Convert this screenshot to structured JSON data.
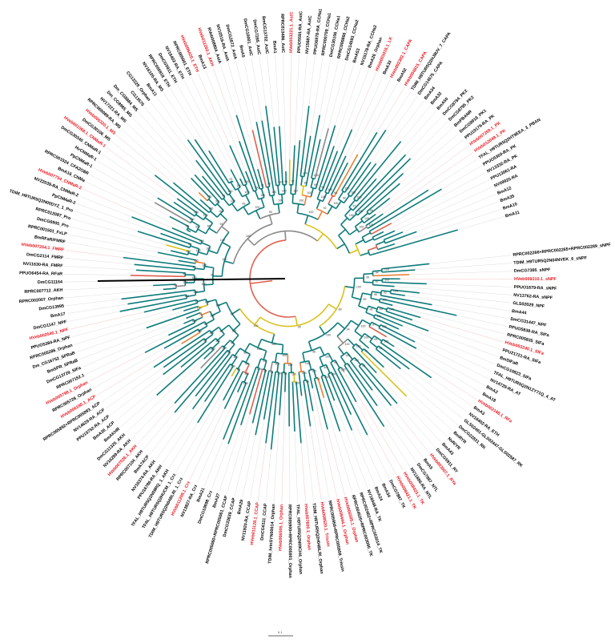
{
  "figure": {
    "type": "circular-phylogenetic-tree",
    "colors": {
      "branch_main": "#0e7b7b",
      "branch_grey": "#8a8a8a",
      "branch_orange": "#e8823a",
      "branch_yellow": "#d9c21e",
      "branch_red": "#e06050",
      "branch_black": "#000000",
      "leaf_guide": "#dddddd",
      "leaf_guide_highlight": "#f3c4c4",
      "label_default": "#000000",
      "label_highlight": "#e8141c"
    }
  },
  "leaves": [
    {
      "label": "RPRC002266+RPRC002265+RPRC002289_sNPF",
      "hl": false
    },
    {
      "label": "TDIM_H9TUR5Q2N04NVEK_6_sNPF",
      "hl": false
    },
    {
      "label": "DmCG7395_sNPF",
      "hl": false
    },
    {
      "label": "HVeb009310.1_sNPF",
      "hl": true
    },
    {
      "label": "PPUO1679-RA_sNPF",
      "hl": false
    },
    {
      "label": "NV13762-RA_sNPF",
      "hl": false
    },
    {
      "label": "GLS02029_NPF",
      "hl": false
    },
    {
      "label": "BmA44",
      "hl": false
    },
    {
      "label": "DmCG31447_NPF",
      "hl": false
    },
    {
      "label": "PPUO5838-RA_SIFa",
      "hl": false
    },
    {
      "label": "RPRC005835_SIFa",
      "hl": false
    },
    {
      "label": "HVeb003240.1_SIFa",
      "hl": true
    },
    {
      "label": "PPU21721-RA_SIFa",
      "hl": false
    },
    {
      "label": "BmSIFaR",
      "hl": false
    },
    {
      "label": "DmCG10823_SIFa",
      "hl": false
    },
    {
      "label": "TFAL_H9TUR5Q2N1ZY71Q_4_AT",
      "hl": false
    },
    {
      "label": "NV14729-RA_AT",
      "hl": false
    },
    {
      "label": "BmA2",
      "hl": false
    },
    {
      "label": "BmA18",
      "hl": false
    },
    {
      "label": "HVeb002168.1_RFa",
      "hl": true
    },
    {
      "label": "BmA3",
      "hl": false
    },
    {
      "label": "NV16402-RA_ETH",
      "hl": false
    },
    {
      "label": "GLS02491-GLS02447-GLS02587_RK",
      "hl": false
    },
    {
      "label": "DmCG22831_RK",
      "hl": false
    },
    {
      "label": "BmRYR",
      "hl": false
    },
    {
      "label": "NvR/YR",
      "hl": false
    },
    {
      "label": "BmA43",
      "hl": false
    },
    {
      "label": "DmCG5911_RY",
      "hl": false
    },
    {
      "label": "HVeb003507.1_RYa",
      "hl": true
    },
    {
      "label": "BmA5",
      "hl": false
    },
    {
      "label": "DmCG7887_NTL",
      "hl": false
    },
    {
      "label": "NV11886-RA_NTL",
      "hl": false
    },
    {
      "label": "HVeb008423.1_TK",
      "hl": true
    },
    {
      "label": "HVeb008421.1_TK",
      "hl": true
    },
    {
      "label": "DmCG7887_TK",
      "hl": false
    },
    {
      "label": "BmA34",
      "hl": false
    },
    {
      "label": "BmA24",
      "hl": false
    },
    {
      "label": "NV16048-RA_TK",
      "hl": false
    },
    {
      "label": "RPRC002462+RPRC003014_TK",
      "hl": false
    },
    {
      "label": "RPRC004520+RPRC003090_TK",
      "hl": false
    },
    {
      "label": "HVeb006505.1_Orphan",
      "hl": true
    },
    {
      "label": "HVeb008444.1_Orphan",
      "hl": true
    },
    {
      "label": "RPRC005958+RPRC005959_Trissin",
      "hl": false
    },
    {
      "label": "HVeb008520.1_Trissin",
      "hl": true
    },
    {
      "label": "TDIM_H9TUR5Q2H04BLRI_Orphan",
      "hl": false
    },
    {
      "label": "HVeb007600.1_Orphan",
      "hl": true
    },
    {
      "label": "TFAL_H9TUR5Q2N09CH4_Orphan",
      "hl": false
    },
    {
      "label": "RPRC005900+RPRC005901_Orphan",
      "hl": false
    },
    {
      "label": "HVeb006505.1_Orphan",
      "hl": true
    },
    {
      "label": "TDIM_hrinSYN00014_Orphan",
      "hl": false
    },
    {
      "label": "DmCG6111_CCAP",
      "hl": false
    },
    {
      "label": "HVeb011128.1_CCAP",
      "hl": true
    },
    {
      "label": "NV11920-RA_CCAP",
      "hl": false
    },
    {
      "label": "BmA29",
      "hl": false
    },
    {
      "label": "DmCG33639_CCAP",
      "hl": false
    },
    {
      "label": "RPRC005060+RPRC005061_CCAP",
      "hl": false
    },
    {
      "label": "BmA27",
      "hl": false
    },
    {
      "label": "DmCG10698_Crz",
      "hl": false
    },
    {
      "label": "BmA21",
      "hl": false
    },
    {
      "label": "NV13827-RA_Crz",
      "hl": false
    },
    {
      "label": "HVeb011208.1_Crz",
      "hl": true
    },
    {
      "label": "TDIM_H9TUR5Q2N04BLRI_1_Crz",
      "hl": false
    },
    {
      "label": "TFAL_H9TUR5Q2HUCM_1_Crz",
      "hl": false
    },
    {
      "label": "TFAL_H9TUR5Q2N09RQ_1_AKH",
      "hl": false
    },
    {
      "label": "PPU16786-RA_AKH",
      "hl": false
    },
    {
      "label": "NV16374-RA_AKH",
      "hl": false
    },
    {
      "label": "BmA7ACP",
      "hl": false
    },
    {
      "label": "RPRC007104_AKH",
      "hl": false
    },
    {
      "label": "HVeb007026.1_AKH",
      "hl": true
    },
    {
      "label": "NV16289-RA_AKH",
      "hl": false
    },
    {
      "label": "DmCG11325_AKH",
      "hl": false
    },
    {
      "label": "BmAKHR",
      "hl": false
    },
    {
      "label": "BmA36_ACP",
      "hl": false
    },
    {
      "label": "PPU15752-RA_ACP",
      "hl": false
    },
    {
      "label": "NV14629-RA_ACP",
      "hl": false
    },
    {
      "label": "RPRC005892+RPRC005893_ACP",
      "hl": false
    },
    {
      "label": "HVeb006180.1_ACP",
      "hl": true
    },
    {
      "label": "RPRC005728_Orphan",
      "hl": false
    },
    {
      "label": "HVeb005798.1_Orphan",
      "hl": true
    },
    {
      "label": "RPRC007152.1",
      "hl": false
    },
    {
      "label": "DmCG13729_SIFa",
      "hl": false
    },
    {
      "label": "BmSPR_SPRaB",
      "hl": false
    },
    {
      "label": "Dm_CG16752_SPRaB",
      "hl": false
    },
    {
      "label": "RPRC005286_Orphan",
      "hl": false
    },
    {
      "label": "PPUO5384-RA_NPF",
      "hl": false
    },
    {
      "label": "HVeb002540.1_NPF",
      "hl": true
    },
    {
      "label": "DmCG1147_NPF",
      "hl": false
    },
    {
      "label": "BmA17",
      "hl": false
    },
    {
      "label": "DmCG13995",
      "hl": false
    },
    {
      "label": "RPRC002007_Orphan",
      "hl": false
    },
    {
      "label": "RPRC007712_AKH",
      "hl": false
    },
    {
      "label": "DmCG11164",
      "hl": false
    },
    {
      "label": "PPUO6454-RA_RFaR",
      "hl": false
    },
    {
      "label": "NV11630-RA_FMRF",
      "hl": false
    },
    {
      "label": "DmCG2114_FMRF",
      "hl": false
    },
    {
      "label": "HVeb007254.1_FMRF",
      "hl": true
    },
    {
      "label": "BmRFaR/FMRF",
      "hl": false
    },
    {
      "label": "RPRC001501_FxLP",
      "hl": false
    },
    {
      "label": "DmCG6905_Pro",
      "hl": false
    },
    {
      "label": "RPRC012087_Pro",
      "hl": false
    },
    {
      "label": "TDIM_H9TUR5Q2N00DYZ_1_Pro",
      "hl": false
    },
    {
      "label": "PpCNMaR-2",
      "hl": false
    },
    {
      "label": "NV22039-RA_CNMaR-2",
      "hl": false
    },
    {
      "label": "HVeb007754_CNMaR-2",
      "hl": true
    },
    {
      "label": "BmA16_CNMa",
      "hl": false
    },
    {
      "label": "RPRC001524_CFA2O8R",
      "hl": false
    },
    {
      "label": "PpCNMaR-1",
      "hl": false
    },
    {
      "label": "HvCNMaR-1",
      "hl": false
    },
    {
      "label": "DmCG30340_CNMaR-1",
      "hl": false
    },
    {
      "label": "HVeb001068.1_CNMaR-1",
      "hl": true
    },
    {
      "label": "DmCG30106_MS",
      "hl": false
    },
    {
      "label": "HVeb000320.1_MS",
      "hl": true
    },
    {
      "label": "RPRC005089-RA_MS",
      "hl": false
    },
    {
      "label": "NV17221-RA_MS",
      "hl": false
    },
    {
      "label": "Dm_CG8985_MS",
      "hl": false
    },
    {
      "label": "Dm_CG8884_MS",
      "hl": false
    },
    {
      "label": "CG13575",
      "hl": false
    },
    {
      "label": "CG13229_Orphan",
      "hl": false
    },
    {
      "label": "BmA11",
      "hl": false
    },
    {
      "label": "NV16105-RA_MS",
      "hl": false
    },
    {
      "label": "RPRC000818_ETH",
      "hl": false
    },
    {
      "label": "DmCG5911_ETH",
      "hl": false
    },
    {
      "label": "NV16402-RA_ETH",
      "hl": false
    },
    {
      "label": "RPRC005001_ETH",
      "hl": false
    },
    {
      "label": "HVeb006420.1_ETH",
      "hl": true
    },
    {
      "label": "BmA13",
      "hl": false
    },
    {
      "label": "HVeb011260.1_AKH",
      "hl": true
    },
    {
      "label": "RVeb008804_AstA",
      "hl": false
    },
    {
      "label": "NV10516-RA_AstA",
      "hl": false
    },
    {
      "label": "DmCG2872_AstA",
      "hl": false
    },
    {
      "label": "BmA5",
      "hl": false
    },
    {
      "label": "DmCG10001_AstC",
      "hl": false
    },
    {
      "label": "DmCG7285_AstC",
      "hl": false
    },
    {
      "label": "BmCG13702_AstC",
      "hl": false
    },
    {
      "label": "BmA1",
      "hl": false
    },
    {
      "label": "RPRC013486_AstC",
      "hl": false
    },
    {
      "label": "HVeb003221.1_AstC",
      "hl": true
    },
    {
      "label": "PPUO5591-RA_AstC",
      "hl": false
    },
    {
      "label": "NV15687-RA_AstC",
      "hl": false
    },
    {
      "label": "PPUO6978-RA_CCHa1",
      "hl": false
    },
    {
      "label": "RPRC000709_CCHa1",
      "hl": false
    },
    {
      "label": "DmCG30106_CCHa1",
      "hl": false
    },
    {
      "label": "RPRC000866_CCHa2",
      "hl": false
    },
    {
      "label": "DmCG14593_CCHa2",
      "hl": false
    },
    {
      "label": "BmA53",
      "hl": false
    },
    {
      "label": "NV15178-RA_CCHa2",
      "hl": false
    },
    {
      "label": "BmA26_Orphan",
      "hl": false
    },
    {
      "label": "HVeb003416.1_LK",
      "hl": true
    },
    {
      "label": "BmA33",
      "hl": false
    },
    {
      "label": "HVeb002302.1_CAPA",
      "hl": true
    },
    {
      "label": "BmA52",
      "hl": false
    },
    {
      "label": "HVeb004815_CAPA",
      "hl": true
    },
    {
      "label": "TDIM_H9TUR5Q2HJ8UV_7_CAPA",
      "hl": false
    },
    {
      "label": "DmCG14575_CAPA",
      "hl": false
    },
    {
      "label": "BmA34",
      "hl": false
    },
    {
      "label": "BmA32",
      "hl": false
    },
    {
      "label": "BmA50",
      "hl": false
    },
    {
      "label": "DmCG8784_PK2",
      "hl": false
    },
    {
      "label": "DmCG8795_PK2",
      "hl": false
    },
    {
      "label": "BmPBANR",
      "hl": false
    },
    {
      "label": "DmCG9918_PK1",
      "hl": false
    },
    {
      "label": "PPU19179-RA_PK",
      "hl": false
    },
    {
      "label": "HVeb007259.1_PK",
      "hl": true
    },
    {
      "label": "HVeb012048.1_PK",
      "hl": true
    },
    {
      "label": "TFAL_H9TUR5Q2HT9EEA_3_PBAN",
      "hl": false
    },
    {
      "label": "PPUO5360-RA_PK",
      "hl": false
    },
    {
      "label": "NV13332-RA_PK",
      "hl": false
    },
    {
      "label": "PPU13061-RA",
      "hl": false
    },
    {
      "label": "NV09925-RA",
      "hl": false
    },
    {
      "label": "BmA12",
      "hl": false
    },
    {
      "label": "BmA35",
      "hl": false
    },
    {
      "label": "BmA10",
      "hl": false
    },
    {
      "label": "BmA11",
      "hl": false
    }
  ],
  "bootstrap_values": [
    "100",
    "94",
    "100",
    "97",
    "99",
    "100",
    "92",
    "100",
    "98",
    "100",
    "65",
    "100",
    "96",
    "99",
    "100",
    "100",
    "87",
    "100",
    "98",
    "99",
    "100",
    "100",
    "91",
    "100",
    "99",
    "100",
    "77",
    "100",
    "100",
    "94",
    "100",
    "99",
    "100",
    "100",
    "83",
    "100",
    "97",
    "100",
    "99",
    "100",
    "100",
    "96",
    "100",
    "89",
    "100",
    "100",
    "98",
    "100",
    "100",
    "95",
    "100",
    "100",
    "99",
    "100",
    "92",
    "100",
    "100",
    "97",
    "99",
    "100",
    "100",
    "88",
    "100",
    "100",
    "99",
    "100",
    "96",
    "100",
    "100",
    "93",
    "100",
    "98",
    "100",
    "100",
    "99",
    "100",
    "72",
    "100",
    "100",
    "97",
    "100",
    "100",
    "98",
    "100",
    "95",
    "100",
    "100",
    "99",
    "100",
    "90",
    "100",
    "100",
    "97",
    "100",
    "100",
    "99",
    "100",
    "94",
    "100",
    "100",
    "100",
    "86",
    "100",
    "99",
    "100",
    "100",
    "96",
    "100",
    "100",
    "98",
    "100",
    "93",
    "100",
    "100",
    "99",
    "100",
    "100",
    "97",
    "100",
    "100",
    "100",
    "99",
    "100",
    "91",
    "100",
    "100",
    "98",
    "100",
    "100",
    "95",
    "100",
    "100",
    "99",
    "100",
    "97",
    "100",
    "100",
    "84",
    "100",
    "99",
    "100",
    "100",
    "96",
    "100",
    "100",
    "98",
    "100",
    "100",
    "99",
    "100",
    "92",
    "100",
    "100",
    "97",
    "100",
    "100",
    "98",
    "100",
    "100",
    "100"
  ],
  "scale_bar": {
    "label": "0.1"
  }
}
